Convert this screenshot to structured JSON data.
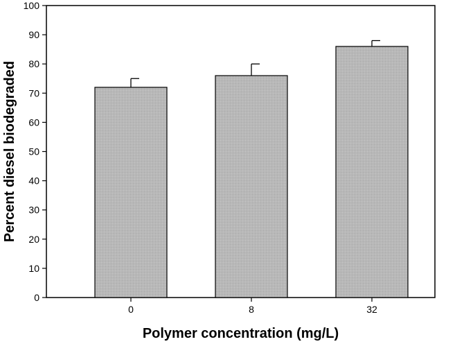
{
  "chart_data": {
    "type": "bar",
    "title": "",
    "xlabel": "Polymer concentration (mg/L)",
    "ylabel": "Percent diesel biodegraded",
    "categories": [
      "0",
      "8",
      "32"
    ],
    "values": [
      72,
      76,
      86
    ],
    "error_bars": [
      3,
      4,
      2
    ],
    "ylim": [
      0,
      100
    ],
    "yticks": [
      0,
      10,
      20,
      30,
      40,
      50,
      60,
      70,
      80,
      90,
      100
    ],
    "grid": false,
    "legend": "none",
    "bar_color": "#b8b8b8"
  }
}
